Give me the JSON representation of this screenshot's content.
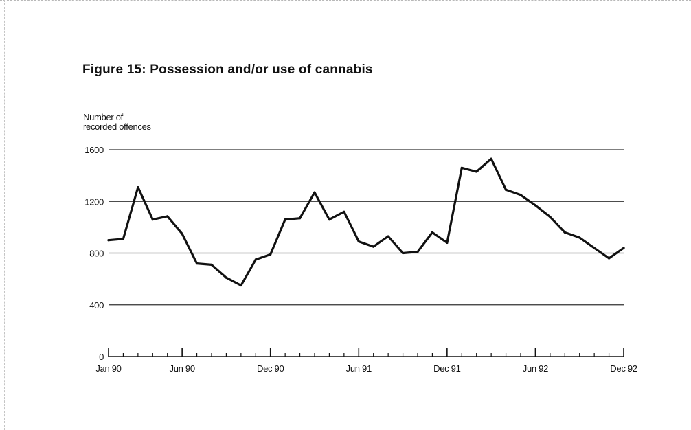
{
  "title": "Figure 15:  Possession and/or use of cannabis",
  "chart_data": {
    "type": "line",
    "title": "Figure 15:  Possession and/or use of cannabis",
    "ylabel_lines": [
      "Number of",
      "recorded offences"
    ],
    "xlabel": "",
    "ylim": [
      0,
      1600
    ],
    "y_ticks": [
      0,
      400,
      800,
      1200,
      1600
    ],
    "y_tick_labels": [
      "0",
      "400",
      "800",
      "1200",
      "1600"
    ],
    "x_tick_labels": [
      {
        "label": "Jan 90",
        "index": 0
      },
      {
        "label": "Jun 90",
        "index": 5
      },
      {
        "label": "Dec 90",
        "index": 11
      },
      {
        "label": "Jun 91",
        "index": 17
      },
      {
        "label": "Dec 91",
        "index": 23
      },
      {
        "label": "Jun 92",
        "index": 29
      },
      {
        "label": "Dec 92",
        "index": 35
      }
    ],
    "grid": "horizontal",
    "series": [
      {
        "values": [
          900,
          910,
          1310,
          1060,
          1085,
          950,
          720,
          710,
          610,
          550,
          750,
          790,
          1060,
          1070,
          1270,
          1060,
          1120,
          890,
          850,
          930,
          800,
          810,
          960,
          880,
          1460,
          1430,
          1530,
          1290,
          1250,
          1170,
          1080,
          960,
          920,
          840,
          760,
          840
        ]
      }
    ]
  }
}
